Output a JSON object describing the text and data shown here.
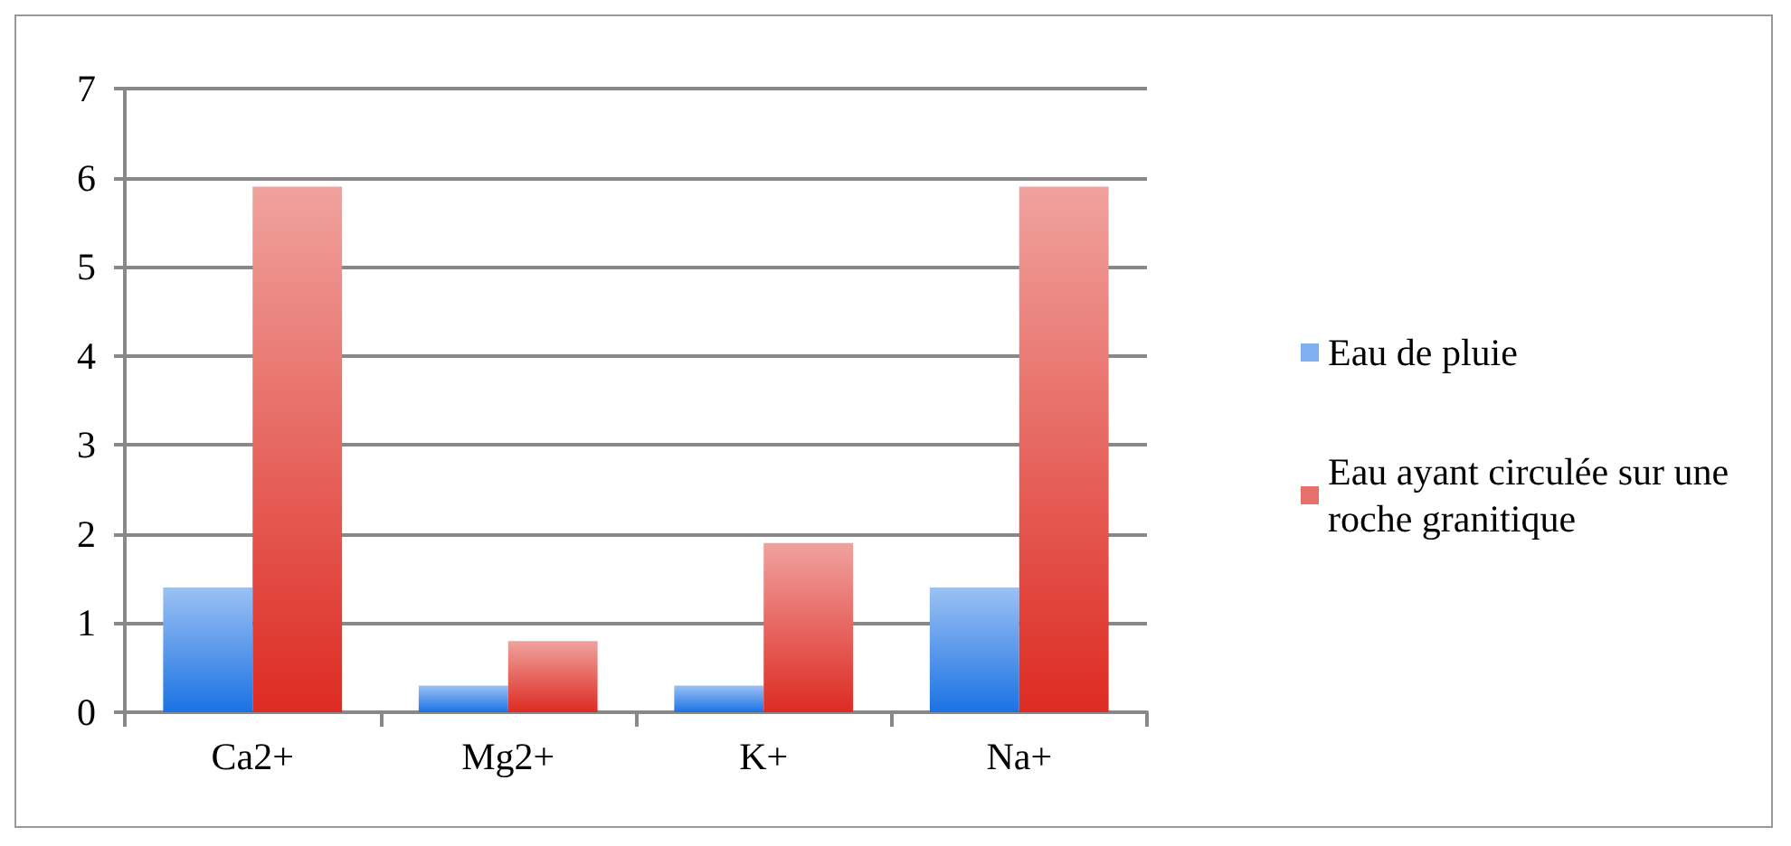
{
  "chart_data": {
    "type": "bar",
    "categories": [
      "Ca2+",
      "Mg2+",
      "K+",
      "Na+"
    ],
    "series": [
      {
        "name": "Eau de pluie",
        "color": "#7fb0f0",
        "values": [
          1.4,
          0.3,
          0.3,
          1.4
        ]
      },
      {
        "name": "Eau ayant circulée sur une roche granitique",
        "color": "#e8706a",
        "values": [
          5.9,
          0.8,
          1.9,
          5.9
        ]
      }
    ],
    "ylim": [
      0,
      7
    ],
    "yticks": [
      0,
      1,
      2,
      3,
      4,
      5,
      6,
      7
    ],
    "grid": "y",
    "legend": "right"
  }
}
